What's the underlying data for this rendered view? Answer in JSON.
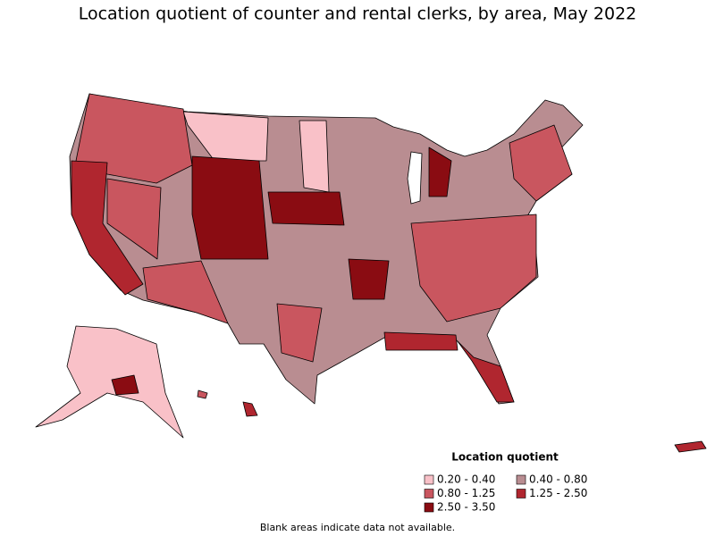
{
  "title": "Location quotient of counter and rental clerks, by area, May 2022",
  "legend": {
    "title": "Location quotient",
    "items": [
      {
        "label": "0.20 - 0.40",
        "color": "#f9c1c8"
      },
      {
        "label": "0.40 - 0.80",
        "color": "#b98d91"
      },
      {
        "label": "0.80 - 1.25",
        "color": "#c9565f"
      },
      {
        "label": "1.25 - 2.50",
        "color": "#b0262f"
      },
      {
        "label": "2.50 - 3.50",
        "color": "#8a0c12"
      }
    ]
  },
  "footnote": "Blank areas indicate data not available."
}
